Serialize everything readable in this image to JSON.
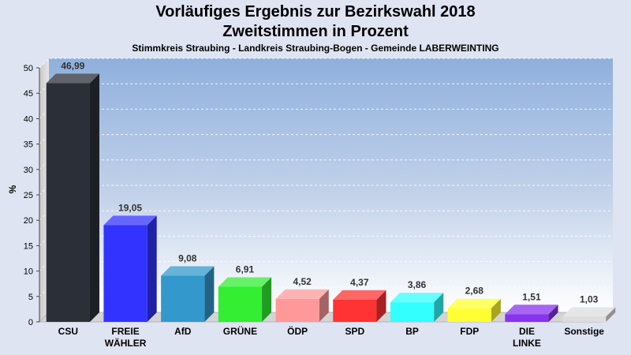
{
  "chart_data": {
    "type": "bar",
    "title": "Vorläufiges Ergebnis zur Bezirkswahl 2018",
    "subtitle": "Zweitstimmen in Prozent",
    "subsubtitle": "Stimmkreis Straubing - Landkreis Straubing-Bogen - Gemeinde LABERWEINTING",
    "ylabel": "%",
    "ylim": [
      0,
      50
    ],
    "yticks": [
      "0",
      "5",
      "10",
      "15",
      "20",
      "25",
      "30",
      "35",
      "40",
      "45",
      "50"
    ],
    "grid": true,
    "categories": [
      [
        "CSU"
      ],
      [
        "FREIE",
        "WÄHLER"
      ],
      [
        "AfD"
      ],
      [
        "GRÜNE"
      ],
      [
        "ÖDP"
      ],
      [
        "SPD"
      ],
      [
        "BP"
      ],
      [
        "FDP"
      ],
      [
        "DIE",
        "LINKE"
      ],
      [
        "Sonstige"
      ]
    ],
    "values": [
      46.99,
      19.05,
      9.08,
      6.91,
      4.52,
      4.37,
      3.86,
      2.68,
      1.51,
      1.03
    ],
    "value_labels": [
      "46,99",
      "19,05",
      "9,08",
      "6,91",
      "4,52",
      "4,37",
      "3,86",
      "2,68",
      "1,51",
      "1,03"
    ],
    "colors": [
      "#2b2f38",
      "#3333ff",
      "#3399cc",
      "#33ee33",
      "#ff9999",
      "#ff3333",
      "#33ffff",
      "#ffff33",
      "#8833ee",
      "#dddddd"
    ]
  }
}
